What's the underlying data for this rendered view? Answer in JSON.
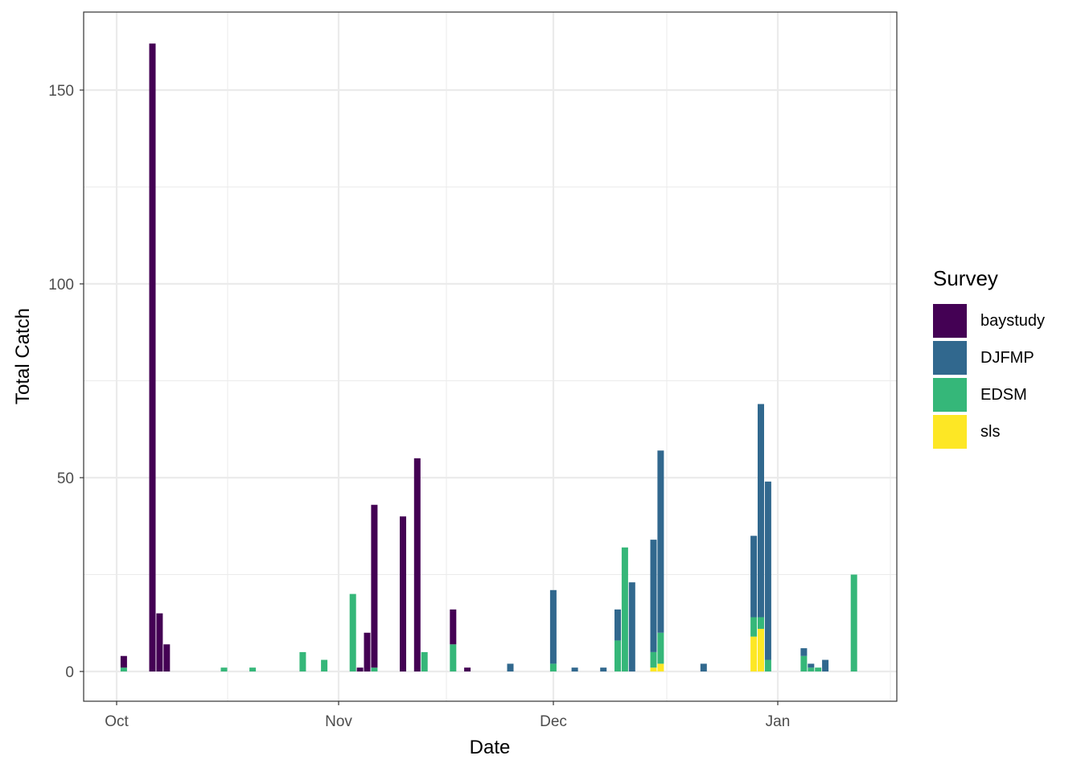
{
  "chart_data": {
    "type": "bar",
    "stacked": true,
    "title": "",
    "xlabel": "Date",
    "ylabel": "Total Catch",
    "ylim": [
      -8,
      170
    ],
    "yticks": [
      0,
      50,
      100,
      150
    ],
    "xticks": [
      "Oct",
      "Nov",
      "Dec",
      "Jan"
    ],
    "grid": true,
    "legend_position": "right",
    "legend": {
      "title": "Survey",
      "entries": [
        "baystudy",
        "DJFMP",
        "EDSM",
        "sls"
      ]
    },
    "colors": {
      "baystudy": "#440154",
      "DJFMP": "#31688E",
      "EDSM": "#35B779",
      "sls": "#FDE725"
    },
    "stack_order_bottom_to_top": [
      "sls",
      "EDSM",
      "DJFMP",
      "baystudy"
    ],
    "categories": [
      "Oct 2",
      "Oct 6",
      "Oct 7",
      "Oct 8",
      "Oct 16",
      "Oct 20",
      "Oct 27",
      "Oct 30",
      "Nov 3",
      "Nov 4",
      "Nov 5",
      "Nov 6",
      "Nov 10",
      "Nov 12",
      "Nov 13",
      "Nov 17",
      "Nov 19",
      "Nov 25",
      "Dec 1",
      "Dec 4",
      "Dec 8",
      "Dec 10",
      "Dec 11",
      "Dec 12",
      "Dec 15",
      "Dec 16",
      "Dec 22",
      "Dec 29",
      "Dec 30",
      "Dec 31",
      "Jan 5",
      "Jan 6",
      "Jan 7",
      "Jan 8",
      "Jan 12"
    ],
    "day_offsets_from_oct1": [
      1,
      5,
      6,
      7,
      15,
      19,
      26,
      29,
      33,
      34,
      35,
      36,
      40,
      42,
      43,
      47,
      49,
      55,
      61,
      64,
      68,
      70,
      71,
      72,
      75,
      76,
      82,
      89,
      90,
      91,
      96,
      97,
      98,
      99,
      103
    ],
    "series": [
      {
        "name": "sls",
        "values": [
          0,
          0,
          0,
          0,
          0,
          0,
          0,
          0,
          0,
          0,
          0,
          0,
          0,
          0,
          0,
          0,
          0,
          0,
          0,
          0,
          0,
          0,
          0,
          0,
          1,
          2,
          0,
          9,
          11,
          0,
          0,
          0,
          0,
          0,
          0
        ]
      },
      {
        "name": "EDSM",
        "values": [
          1,
          0,
          0,
          0,
          1,
          1,
          5,
          3,
          20,
          0,
          0,
          1,
          0,
          0,
          5,
          7,
          0,
          0,
          2,
          0,
          0,
          8,
          32,
          0,
          4,
          8,
          0,
          5,
          3,
          3,
          4,
          1,
          1,
          0,
          25
        ]
      },
      {
        "name": "DJFMP",
        "values": [
          0,
          0,
          0,
          0,
          0,
          0,
          0,
          0,
          0,
          0,
          0,
          0,
          0,
          0,
          0,
          0,
          0,
          2,
          19,
          1,
          1,
          8,
          0,
          23,
          29,
          47,
          2,
          21,
          55,
          46,
          2,
          1,
          0,
          3,
          0
        ]
      },
      {
        "name": "baystudy",
        "values": [
          3,
          162,
          15,
          7,
          0,
          0,
          0,
          0,
          0,
          1,
          10,
          42,
          40,
          55,
          0,
          9,
          1,
          0,
          0,
          0,
          0,
          0,
          0,
          0,
          0,
          0,
          0,
          0,
          0,
          0,
          0,
          0,
          0,
          0,
          0
        ]
      }
    ]
  }
}
